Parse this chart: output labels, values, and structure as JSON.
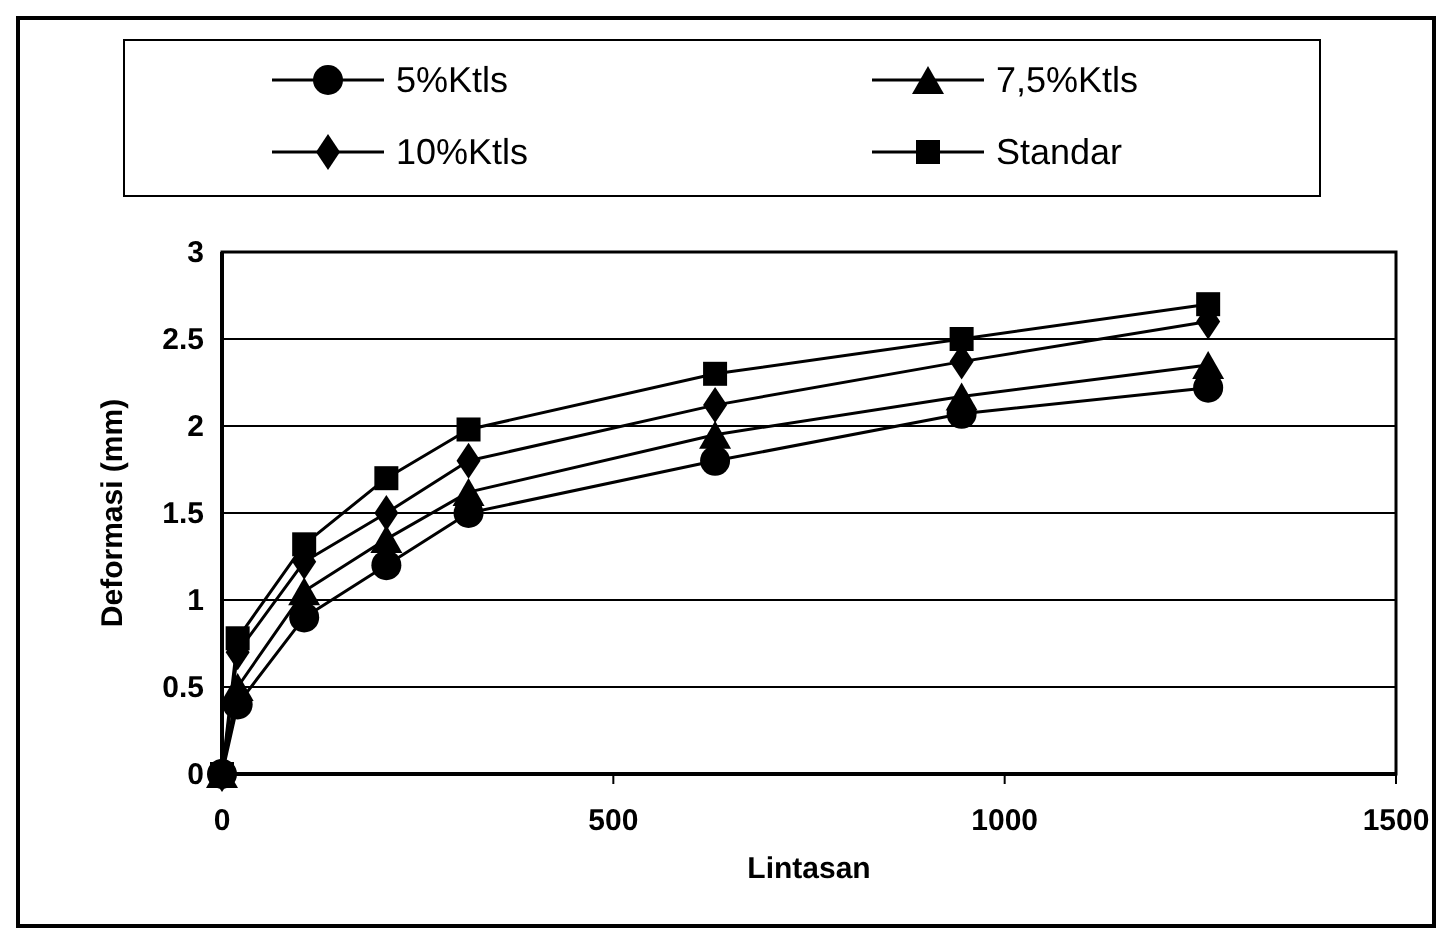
{
  "chart_data": {
    "type": "line",
    "xlabel": "Lintasan",
    "ylabel": "Deformasi (mm)",
    "x": [
      0,
      20,
      105,
      210,
      315,
      630,
      945,
      1260
    ],
    "series": [
      {
        "name": "5%Ktls",
        "color": "#000000",
        "marker": "circle",
        "values": [
          0,
          0.4,
          0.9,
          1.2,
          1.5,
          1.8,
          2.07,
          2.22
        ]
      },
      {
        "name": "7,5%Ktls",
        "color": "#000000",
        "marker": "triangle",
        "values": [
          0,
          0.5,
          1.05,
          1.35,
          1.62,
          1.95,
          2.17,
          2.35
        ]
      },
      {
        "name": "10%Ktls",
        "color": "#000000",
        "marker": "diamond",
        "values": [
          0,
          0.7,
          1.22,
          1.5,
          1.8,
          2.12,
          2.37,
          2.6
        ]
      },
      {
        "name": "Standar",
        "color": "#000000",
        "marker": "square",
        "values": [
          0,
          0.78,
          1.32,
          1.7,
          1.98,
          2.3,
          2.5,
          2.7
        ]
      }
    ],
    "xlim": [
      0,
      1500
    ],
    "xticks": [
      0,
      500,
      1000,
      1500
    ],
    "ylim": [
      0,
      3
    ],
    "yticks": [
      0,
      0.5,
      1,
      1.5,
      2,
      2.5,
      3
    ],
    "grid": "y",
    "legend": "top",
    "line_style": "solid"
  }
}
